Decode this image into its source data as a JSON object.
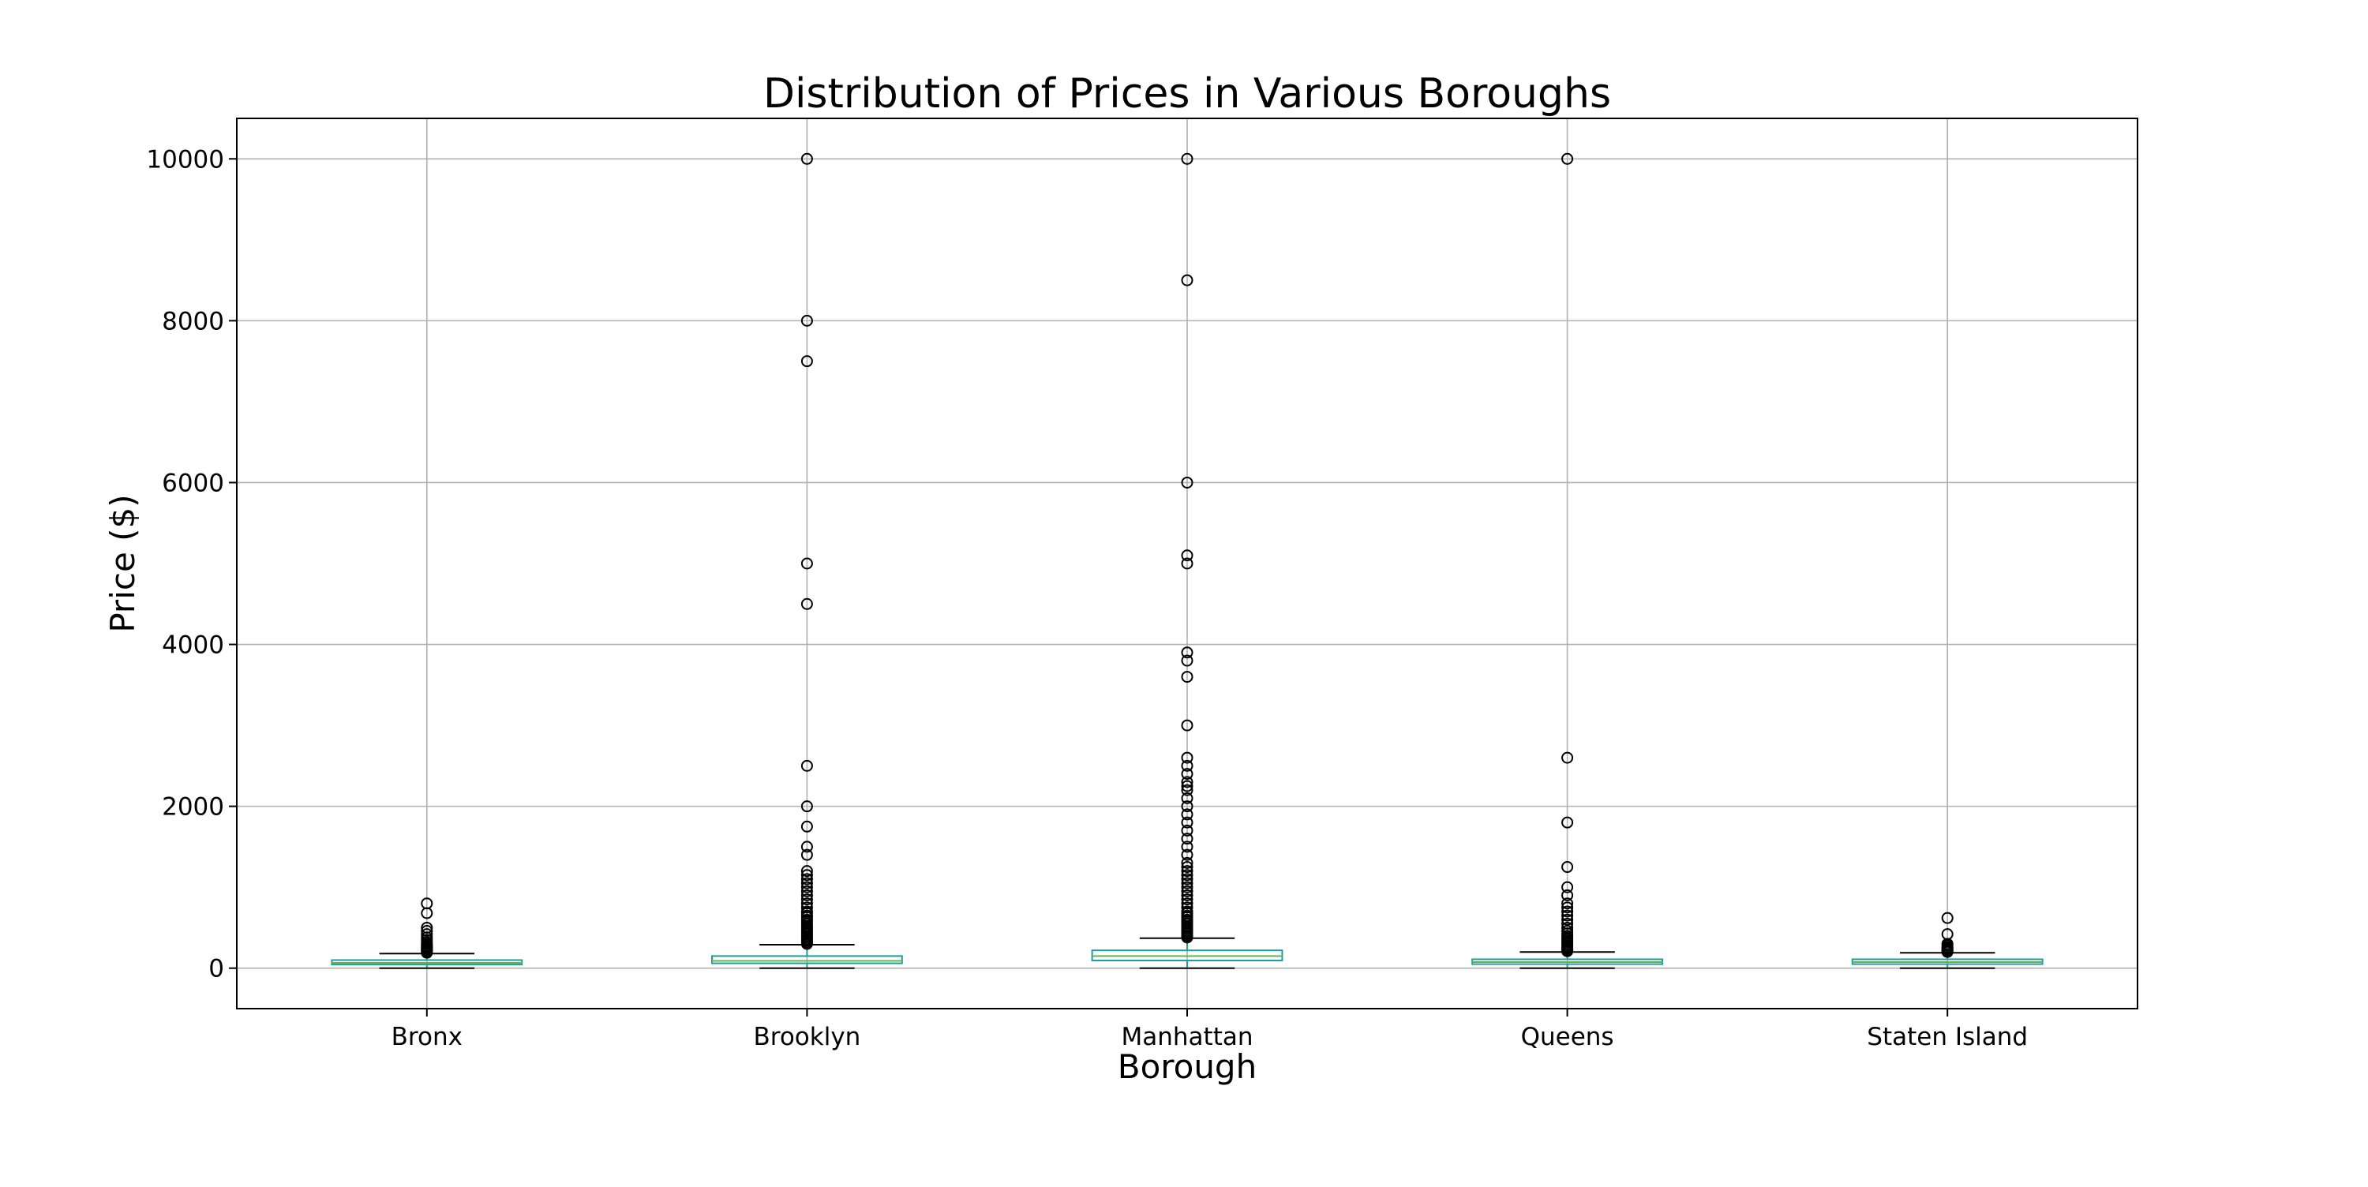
{
  "chart_data": {
    "type": "box",
    "title": "Distribution of Prices in Various Boroughs",
    "xlabel": "Borough",
    "ylabel": "Price ($)",
    "ylim": [
      -500,
      10500
    ],
    "yticks": [
      0,
      2000,
      4000,
      6000,
      8000,
      10000
    ],
    "grid": true,
    "categories": [
      "Bronx",
      "Brooklyn",
      "Manhattan",
      "Queens",
      "Staten Island"
    ],
    "box_color": "#1a9e9e",
    "boxes": [
      {
        "category": "Bronx",
        "whisker_low": 0,
        "q1": 45,
        "median": 65,
        "q3": 100,
        "whisker_high": 180,
        "outliers": [
          190,
          200,
          210,
          220,
          230,
          240,
          250,
          260,
          270,
          280,
          300,
          320,
          350,
          380,
          420,
          460,
          500,
          680,
          800
        ]
      },
      {
        "category": "Brooklyn",
        "whisker_low": 0,
        "q1": 60,
        "median": 90,
        "q3": 150,
        "whisker_high": 290,
        "outliers": [
          300,
          320,
          340,
          360,
          380,
          400,
          420,
          440,
          460,
          480,
          500,
          520,
          550,
          580,
          600,
          630,
          650,
          680,
          700,
          750,
          800,
          850,
          900,
          950,
          1000,
          1050,
          1100,
          1150,
          1200,
          1400,
          1500,
          1750,
          2000,
          2500,
          4500,
          5000,
          7500,
          8000,
          10000
        ]
      },
      {
        "category": "Manhattan",
        "whisker_low": 0,
        "q1": 95,
        "median": 150,
        "q3": 220,
        "whisker_high": 370,
        "outliers": [
          380,
          400,
          420,
          440,
          460,
          480,
          500,
          520,
          550,
          580,
          600,
          630,
          650,
          680,
          700,
          750,
          800,
          850,
          900,
          950,
          1000,
          1050,
          1100,
          1150,
          1200,
          1250,
          1300,
          1400,
          1500,
          1600,
          1700,
          1800,
          1900,
          2000,
          2100,
          2200,
          2250,
          2300,
          2400,
          2500,
          2600,
          3000,
          3600,
          3800,
          3900,
          5000,
          5100,
          6000,
          8500,
          10000
        ]
      },
      {
        "category": "Queens",
        "whisker_low": 0,
        "q1": 50,
        "median": 75,
        "q3": 110,
        "whisker_high": 200,
        "outliers": [
          210,
          220,
          230,
          240,
          250,
          260,
          280,
          300,
          320,
          340,
          360,
          380,
          400,
          430,
          460,
          500,
          550,
          600,
          650,
          700,
          750,
          800,
          900,
          1000,
          1250,
          1800,
          2600,
          10000
        ]
      },
      {
        "category": "Staten Island",
        "whisker_low": 0,
        "q1": 50,
        "median": 75,
        "q3": 110,
        "whisker_high": 190,
        "outliers": [
          200,
          210,
          220,
          230,
          240,
          250,
          260,
          280,
          300,
          420,
          620
        ]
      }
    ]
  }
}
